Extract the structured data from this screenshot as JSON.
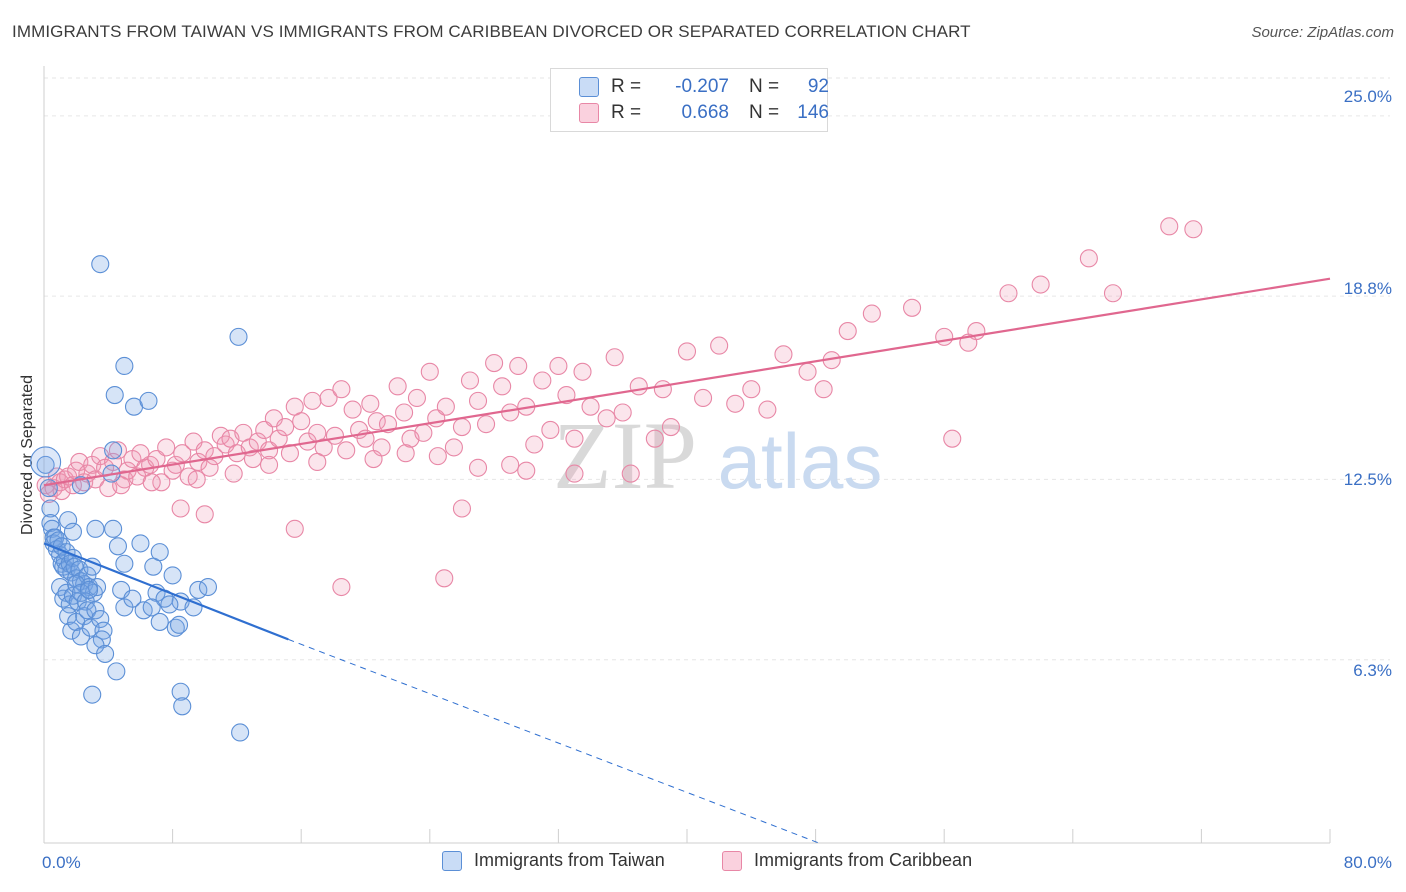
{
  "title": "IMMIGRANTS FROM TAIWAN VS IMMIGRANTS FROM CARIBBEAN DIVORCED OR SEPARATED CORRELATION CHART",
  "source": "Source: ZipAtlas.com",
  "watermark": {
    "zip": "ZIP",
    "atlas": "atlas"
  },
  "legend": {
    "r_label": "R =",
    "n_label": "N =",
    "rows": [
      {
        "series": "Immigrants from Taiwan",
        "r": "-0.207",
        "n": "92",
        "color": "#a9c6ef",
        "stroke": "#5b8fd6"
      },
      {
        "series": "Immigrants from Caribbean",
        "r": "0.668",
        "n": "146",
        "color": "#f6c1d1",
        "stroke": "#e887a6"
      }
    ]
  },
  "chart_data": {
    "type": "scatter",
    "title": "IMMIGRANTS FROM TAIWAN VS IMMIGRANTS FROM CARIBBEAN DIVORCED OR SEPARATED CORRELATION CHART",
    "xlabel": "",
    "ylabel": "Divorced or Separated",
    "xlim": [
      0,
      80
    ],
    "ylim": [
      0,
      26.3
    ],
    "x_tick_labels": [
      "0.0%",
      "80.0%"
    ],
    "y_ticks": [
      6.3,
      12.5,
      18.8,
      25.0
    ],
    "y_tick_labels": [
      "6.3%",
      "12.5%",
      "18.8%",
      "25.0%"
    ],
    "grid": "horizontal dashed",
    "legend_position": "top-center",
    "series": [
      {
        "name": "Immigrants from Taiwan",
        "color": "#5b8fd6",
        "trend": {
          "x": [
            0,
            15.2
          ],
          "y": [
            10.3,
            7.0
          ],
          "extended_to": [
            48.2,
            0
          ]
        },
        "points": [
          [
            0.1,
            13.0
          ],
          [
            0.3,
            12.2
          ],
          [
            0.4,
            11.5
          ],
          [
            0.4,
            11.0
          ],
          [
            0.5,
            10.8
          ],
          [
            0.6,
            10.5
          ],
          [
            0.6,
            10.3
          ],
          [
            0.7,
            10.5
          ],
          [
            0.8,
            10.1
          ],
          [
            0.9,
            10.4
          ],
          [
            1.0,
            9.9
          ],
          [
            1.1,
            10.2
          ],
          [
            1.1,
            9.6
          ],
          [
            1.2,
            9.5
          ],
          [
            1.3,
            9.7
          ],
          [
            1.4,
            10.0
          ],
          [
            1.4,
            9.4
          ],
          [
            1.6,
            9.6
          ],
          [
            1.7,
            9.3
          ],
          [
            1.8,
            9.8
          ],
          [
            1.9,
            9.5
          ],
          [
            2.0,
            9.1
          ],
          [
            2.2,
            9.4
          ],
          [
            2.3,
            9.0
          ],
          [
            2.5,
            8.9
          ],
          [
            2.7,
            9.2
          ],
          [
            2.8,
            8.8
          ],
          [
            3.0,
            9.5
          ],
          [
            3.1,
            8.6
          ],
          [
            3.3,
            8.8
          ],
          [
            1.0,
            8.8
          ],
          [
            1.2,
            8.4
          ],
          [
            1.4,
            8.6
          ],
          [
            1.6,
            8.2
          ],
          [
            1.8,
            8.5
          ],
          [
            2.0,
            8.9
          ],
          [
            2.1,
            8.3
          ],
          [
            2.3,
            8.6
          ],
          [
            2.6,
            8.3
          ],
          [
            2.8,
            8.7
          ],
          [
            1.5,
            7.8
          ],
          [
            1.7,
            7.3
          ],
          [
            2.0,
            7.6
          ],
          [
            2.3,
            7.1
          ],
          [
            2.5,
            7.8
          ],
          [
            2.7,
            8.0
          ],
          [
            2.9,
            7.4
          ],
          [
            3.2,
            8.0
          ],
          [
            3.5,
            7.7
          ],
          [
            3.7,
            7.3
          ],
          [
            3.6,
            7.0
          ],
          [
            3.2,
            6.8
          ],
          [
            3.8,
            6.5
          ],
          [
            4.5,
            5.9
          ],
          [
            3.0,
            5.1
          ],
          [
            1.5,
            11.1
          ],
          [
            1.8,
            10.7
          ],
          [
            2.3,
            12.3
          ],
          [
            3.2,
            10.8
          ],
          [
            4.3,
            10.8
          ],
          [
            4.6,
            10.2
          ],
          [
            5.0,
            9.6
          ],
          [
            6.0,
            10.3
          ],
          [
            6.8,
            9.5
          ],
          [
            7.2,
            10.0
          ],
          [
            7.0,
            8.6
          ],
          [
            7.5,
            8.4
          ],
          [
            8.0,
            9.2
          ],
          [
            8.5,
            8.3
          ],
          [
            9.3,
            8.1
          ],
          [
            9.6,
            8.7
          ],
          [
            10.2,
            8.8
          ],
          [
            4.8,
            8.7
          ],
          [
            5.0,
            8.1
          ],
          [
            5.5,
            8.4
          ],
          [
            6.2,
            8.0
          ],
          [
            6.7,
            8.1
          ],
          [
            7.2,
            7.6
          ],
          [
            7.8,
            8.2
          ],
          [
            8.2,
            7.4
          ],
          [
            8.4,
            7.5
          ],
          [
            4.2,
            12.7
          ],
          [
            4.3,
            13.5
          ],
          [
            4.4,
            15.4
          ],
          [
            5.0,
            16.4
          ],
          [
            5.6,
            15.0
          ],
          [
            6.5,
            15.2
          ],
          [
            3.5,
            19.9
          ],
          [
            12.1,
            17.4
          ],
          [
            8.5,
            5.2
          ],
          [
            8.6,
            4.7
          ],
          [
            12.2,
            3.8
          ]
        ]
      },
      {
        "name": "Immigrants from Caribbean",
        "color": "#e887a6",
        "trend": {
          "x": [
            0,
            80
          ],
          "y": [
            12.3,
            19.4
          ]
        },
        "points": [
          [
            0.1,
            12.3
          ],
          [
            0.3,
            12.0
          ],
          [
            0.6,
            12.2
          ],
          [
            0.8,
            12.6
          ],
          [
            1.0,
            12.4
          ],
          [
            1.1,
            12.1
          ],
          [
            1.3,
            12.5
          ],
          [
            1.5,
            12.6
          ],
          [
            1.8,
            12.3
          ],
          [
            2.0,
            12.8
          ],
          [
            2.2,
            13.1
          ],
          [
            2.5,
            12.4
          ],
          [
            2.7,
            12.7
          ],
          [
            3.0,
            13.0
          ],
          [
            3.2,
            12.5
          ],
          [
            3.5,
            13.3
          ],
          [
            3.8,
            12.9
          ],
          [
            4.0,
            12.2
          ],
          [
            4.3,
            13.1
          ],
          [
            4.6,
            13.5
          ],
          [
            5.0,
            12.5
          ],
          [
            5.2,
            12.8
          ],
          [
            5.5,
            13.2
          ],
          [
            5.8,
            12.6
          ],
          [
            6.0,
            13.4
          ],
          [
            6.3,
            12.9
          ],
          [
            6.6,
            13.0
          ],
          [
            7.0,
            13.2
          ],
          [
            7.3,
            12.4
          ],
          [
            7.6,
            13.6
          ],
          [
            8.0,
            12.8
          ],
          [
            8.2,
            13.0
          ],
          [
            8.6,
            13.4
          ],
          [
            9.0,
            12.6
          ],
          [
            9.3,
            13.8
          ],
          [
            9.6,
            13.1
          ],
          [
            10.0,
            13.5
          ],
          [
            10.3,
            12.9
          ],
          [
            10.6,
            13.3
          ],
          [
            11.0,
            14.0
          ],
          [
            11.3,
            13.7
          ],
          [
            11.6,
            13.9
          ],
          [
            12.0,
            13.4
          ],
          [
            12.4,
            14.1
          ],
          [
            12.8,
            13.6
          ],
          [
            13.0,
            13.2
          ],
          [
            13.3,
            13.8
          ],
          [
            13.7,
            14.2
          ],
          [
            14.0,
            13.5
          ],
          [
            14.3,
            14.6
          ],
          [
            14.6,
            13.9
          ],
          [
            15.0,
            14.3
          ],
          [
            15.3,
            13.4
          ],
          [
            15.6,
            15.0
          ],
          [
            16.0,
            14.5
          ],
          [
            16.4,
            13.8
          ],
          [
            16.7,
            15.2
          ],
          [
            17.0,
            14.1
          ],
          [
            17.4,
            13.6
          ],
          [
            17.7,
            15.3
          ],
          [
            18.1,
            14.0
          ],
          [
            18.5,
            15.6
          ],
          [
            18.8,
            13.5
          ],
          [
            19.2,
            14.9
          ],
          [
            19.6,
            14.2
          ],
          [
            20.0,
            13.9
          ],
          [
            20.3,
            15.1
          ],
          [
            20.7,
            14.5
          ],
          [
            21.0,
            13.6
          ],
          [
            21.4,
            14.4
          ],
          [
            22.0,
            15.7
          ],
          [
            22.4,
            14.8
          ],
          [
            22.8,
            13.9
          ],
          [
            23.2,
            15.3
          ],
          [
            23.6,
            14.1
          ],
          [
            24.0,
            16.2
          ],
          [
            24.4,
            14.6
          ],
          [
            25.0,
            15.0
          ],
          [
            25.5,
            13.6
          ],
          [
            26.0,
            14.3
          ],
          [
            26.5,
            15.9
          ],
          [
            27.0,
            15.2
          ],
          [
            27.5,
            14.4
          ],
          [
            28.0,
            16.5
          ],
          [
            28.5,
            15.7
          ],
          [
            29.0,
            14.8
          ],
          [
            29.5,
            16.4
          ],
          [
            30.0,
            15.0
          ],
          [
            30.5,
            13.7
          ],
          [
            31.0,
            15.9
          ],
          [
            31.5,
            14.2
          ],
          [
            32.0,
            16.4
          ],
          [
            32.5,
            15.4
          ],
          [
            33.0,
            13.9
          ],
          [
            33.5,
            16.2
          ],
          [
            34.0,
            15.0
          ],
          [
            35.0,
            14.6
          ],
          [
            35.5,
            16.7
          ],
          [
            36.0,
            14.8
          ],
          [
            37.0,
            15.7
          ],
          [
            38.0,
            13.9
          ],
          [
            38.5,
            15.6
          ],
          [
            39.0,
            14.3
          ],
          [
            40.0,
            16.9
          ],
          [
            41.0,
            15.3
          ],
          [
            42.0,
            17.1
          ],
          [
            43.0,
            15.1
          ],
          [
            44.0,
            15.6
          ],
          [
            45.0,
            14.9
          ],
          [
            46.0,
            16.8
          ],
          [
            47.5,
            16.2
          ],
          [
            48.5,
            15.6
          ],
          [
            49.0,
            16.6
          ],
          [
            50.0,
            17.6
          ],
          [
            51.5,
            18.2
          ],
          [
            54.0,
            18.4
          ],
          [
            56.0,
            17.4
          ],
          [
            58.0,
            17.6
          ],
          [
            60.0,
            18.9
          ],
          [
            62.0,
            19.2
          ],
          [
            65.0,
            20.1
          ],
          [
            66.5,
            18.9
          ],
          [
            70.0,
            21.2
          ],
          [
            71.5,
            21.1
          ],
          [
            57.5,
            17.2
          ],
          [
            56.5,
            13.9
          ],
          [
            36.5,
            12.7
          ],
          [
            30.0,
            12.8
          ],
          [
            26.0,
            11.5
          ],
          [
            24.9,
            9.1
          ],
          [
            18.5,
            8.8
          ],
          [
            15.6,
            10.8
          ],
          [
            10.0,
            11.3
          ],
          [
            8.5,
            11.5
          ],
          [
            4.8,
            12.3
          ],
          [
            6.7,
            12.4
          ],
          [
            9.5,
            12.5
          ],
          [
            11.8,
            12.7
          ],
          [
            14.0,
            13.0
          ],
          [
            17.0,
            13.1
          ],
          [
            20.5,
            13.2
          ],
          [
            22.5,
            13.4
          ],
          [
            24.5,
            13.3
          ],
          [
            27.0,
            12.9
          ],
          [
            29.0,
            13.0
          ],
          [
            33.0,
            12.7
          ]
        ]
      }
    ]
  }
}
